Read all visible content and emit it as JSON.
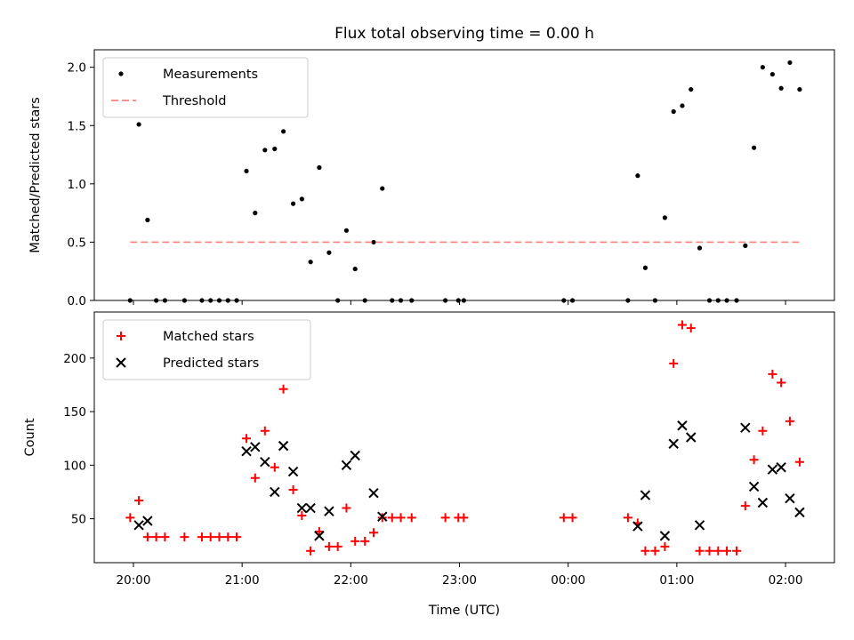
{
  "figure": {
    "title": "Flux total observing time = 0.00 h",
    "xlabel": "Time (UTC)",
    "xticks": [
      {
        "t": 20.0,
        "label": "20:00"
      },
      {
        "t": 21.0,
        "label": "21:00"
      },
      {
        "t": 22.0,
        "label": "22:00"
      },
      {
        "t": 23.0,
        "label": "23:00"
      },
      {
        "t": 24.0,
        "label": "00:00"
      },
      {
        "t": 25.0,
        "label": "01:00"
      },
      {
        "t": 26.0,
        "label": "02:00"
      }
    ],
    "xlim": [
      19.64,
      26.45
    ]
  },
  "chart_data": [
    {
      "type": "scatter",
      "ylabel": "Matched/Predicted stars",
      "ylim": [
        0,
        2.15
      ],
      "yticks": [
        {
          "v": 0.0,
          "label": "0.0"
        },
        {
          "v": 0.5,
          "label": "0.5"
        },
        {
          "v": 1.0,
          "label": "1.0"
        },
        {
          "v": 1.5,
          "label": "1.5"
        },
        {
          "v": 2.0,
          "label": "2.0"
        }
      ],
      "legend_position": "top-left",
      "series": [
        {
          "name": "Measurements",
          "marker": "dot",
          "color": "#000000",
          "points": [
            [
              19.97,
              0.0
            ],
            [
              20.05,
              1.51
            ],
            [
              20.13,
              0.69
            ],
            [
              20.21,
              0.0
            ],
            [
              20.29,
              0.0
            ],
            [
              20.47,
              0.0
            ],
            [
              20.63,
              0.0
            ],
            [
              20.71,
              0.0
            ],
            [
              20.79,
              0.0
            ],
            [
              20.87,
              0.0
            ],
            [
              20.95,
              0.0
            ],
            [
              21.04,
              1.11
            ],
            [
              21.12,
              0.75
            ],
            [
              21.21,
              1.29
            ],
            [
              21.3,
              1.3
            ],
            [
              21.38,
              1.45
            ],
            [
              21.47,
              0.83
            ],
            [
              21.55,
              0.87
            ],
            [
              21.63,
              0.33
            ],
            [
              21.71,
              1.14
            ],
            [
              21.8,
              0.41
            ],
            [
              21.88,
              0.0
            ],
            [
              21.96,
              0.6
            ],
            [
              22.04,
              0.27
            ],
            [
              22.13,
              0.0
            ],
            [
              22.21,
              0.5
            ],
            [
              22.29,
              0.96
            ],
            [
              22.38,
              0.0
            ],
            [
              22.46,
              0.0
            ],
            [
              22.56,
              0.0
            ],
            [
              22.87,
              0.0
            ],
            [
              22.99,
              0.0
            ],
            [
              23.04,
              0.0
            ],
            [
              23.96,
              0.0
            ],
            [
              24.04,
              0.0
            ],
            [
              24.55,
              0.0
            ],
            [
              24.64,
              1.07
            ],
            [
              24.71,
              0.28
            ],
            [
              24.8,
              0.0
            ],
            [
              24.89,
              0.71
            ],
            [
              24.97,
              1.62
            ],
            [
              25.05,
              1.67
            ],
            [
              25.13,
              1.81
            ],
            [
              25.21,
              0.45
            ],
            [
              25.3,
              0.0
            ],
            [
              25.38,
              0.0
            ],
            [
              25.46,
              0.0
            ],
            [
              25.55,
              0.0
            ],
            [
              25.63,
              0.47
            ],
            [
              25.71,
              1.31
            ],
            [
              25.79,
              2.0
            ],
            [
              25.88,
              1.94
            ],
            [
              25.96,
              1.82
            ],
            [
              26.04,
              2.04
            ],
            [
              26.13,
              1.81
            ]
          ]
        },
        {
          "name": "Threshold",
          "type": "line",
          "style": "dashed",
          "color": "#ff7f7f",
          "points": [
            [
              19.97,
              0.5
            ],
            [
              26.13,
              0.5
            ]
          ]
        }
      ]
    },
    {
      "type": "scatter",
      "ylabel": "Count",
      "ylim": [
        9,
        243
      ],
      "yticks": [
        {
          "v": 50,
          "label": "50"
        },
        {
          "v": 100,
          "label": "100"
        },
        {
          "v": 150,
          "label": "150"
        },
        {
          "v": 200,
          "label": "200"
        }
      ],
      "legend_position": "top-left",
      "series": [
        {
          "name": "Matched stars",
          "marker": "plus",
          "color": "#ff0000",
          "points": [
            [
              19.97,
              51
            ],
            [
              20.05,
              67
            ],
            [
              20.13,
              33
            ],
            [
              20.21,
              33
            ],
            [
              20.29,
              33
            ],
            [
              20.47,
              33
            ],
            [
              20.63,
              33
            ],
            [
              20.71,
              33
            ],
            [
              20.79,
              33
            ],
            [
              20.87,
              33
            ],
            [
              20.95,
              33
            ],
            [
              21.04,
              125
            ],
            [
              21.12,
              88
            ],
            [
              21.21,
              132
            ],
            [
              21.3,
              98
            ],
            [
              21.38,
              171
            ],
            [
              21.47,
              77
            ],
            [
              21.55,
              53
            ],
            [
              21.63,
              20
            ],
            [
              21.71,
              38
            ],
            [
              21.8,
              24
            ],
            [
              21.88,
              24
            ],
            [
              21.96,
              60
            ],
            [
              22.04,
              29
            ],
            [
              22.13,
              29
            ],
            [
              22.21,
              37
            ],
            [
              22.29,
              51
            ],
            [
              22.38,
              51
            ],
            [
              22.46,
              51
            ],
            [
              22.56,
              51
            ],
            [
              22.87,
              51
            ],
            [
              22.99,
              51
            ],
            [
              23.04,
              51
            ],
            [
              23.96,
              51
            ],
            [
              24.04,
              51
            ],
            [
              24.55,
              51
            ],
            [
              24.64,
              46
            ],
            [
              24.71,
              20
            ],
            [
              24.8,
              20
            ],
            [
              24.89,
              24
            ],
            [
              24.97,
              195
            ],
            [
              25.05,
              231
            ],
            [
              25.13,
              228
            ],
            [
              25.21,
              20
            ],
            [
              25.3,
              20
            ],
            [
              25.38,
              20
            ],
            [
              25.46,
              20
            ],
            [
              25.55,
              20
            ],
            [
              25.63,
              62
            ],
            [
              25.71,
              105
            ],
            [
              25.79,
              132
            ],
            [
              25.88,
              185
            ],
            [
              25.96,
              177
            ],
            [
              26.04,
              141
            ],
            [
              26.13,
              103
            ]
          ]
        },
        {
          "name": "Predicted stars",
          "marker": "x",
          "color": "#000000",
          "points": [
            [
              20.05,
              44
            ],
            [
              20.13,
              48
            ],
            [
              21.04,
              113
            ],
            [
              21.12,
              117
            ],
            [
              21.21,
              103
            ],
            [
              21.3,
              75
            ],
            [
              21.38,
              118
            ],
            [
              21.47,
              94
            ],
            [
              21.55,
              60
            ],
            [
              21.63,
              60
            ],
            [
              21.71,
              34
            ],
            [
              21.8,
              57
            ],
            [
              21.96,
              100
            ],
            [
              22.04,
              109
            ],
            [
              22.21,
              74
            ],
            [
              22.29,
              52
            ],
            [
              24.64,
              43
            ],
            [
              24.71,
              72
            ],
            [
              24.89,
              34
            ],
            [
              24.97,
              120
            ],
            [
              25.05,
              137
            ],
            [
              25.13,
              126
            ],
            [
              25.21,
              44
            ],
            [
              25.63,
              135
            ],
            [
              25.71,
              80
            ],
            [
              25.79,
              65
            ],
            [
              25.88,
              96
            ],
            [
              25.96,
              98
            ],
            [
              26.04,
              69
            ],
            [
              26.13,
              56
            ]
          ]
        }
      ]
    }
  ]
}
